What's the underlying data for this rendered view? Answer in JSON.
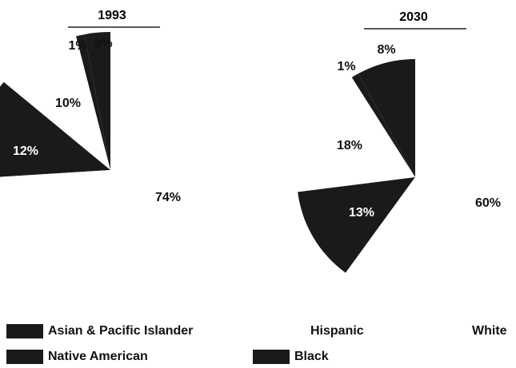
{
  "chart_data": {
    "type": "pie",
    "categories": [
      "Asian & Pacific Islander",
      "Native American",
      "Hispanic",
      "Black",
      "White"
    ],
    "colors": [
      "#1a1a1a",
      "#1a1a1a",
      "#ffffff",
      "#1a1a1a",
      "#ffffff"
    ],
    "series": [
      {
        "name": "1993",
        "values": [
          3,
          1,
          10,
          12,
          74
        ],
        "value_labels": [
          "3%",
          "1%",
          "10%",
          "12%",
          "74%"
        ]
      },
      {
        "name": "2030",
        "values": [
          8,
          1,
          18,
          13,
          60
        ],
        "value_labels": [
          "8%",
          "1%",
          "18%",
          "13%",
          "60%"
        ]
      }
    ]
  }
}
